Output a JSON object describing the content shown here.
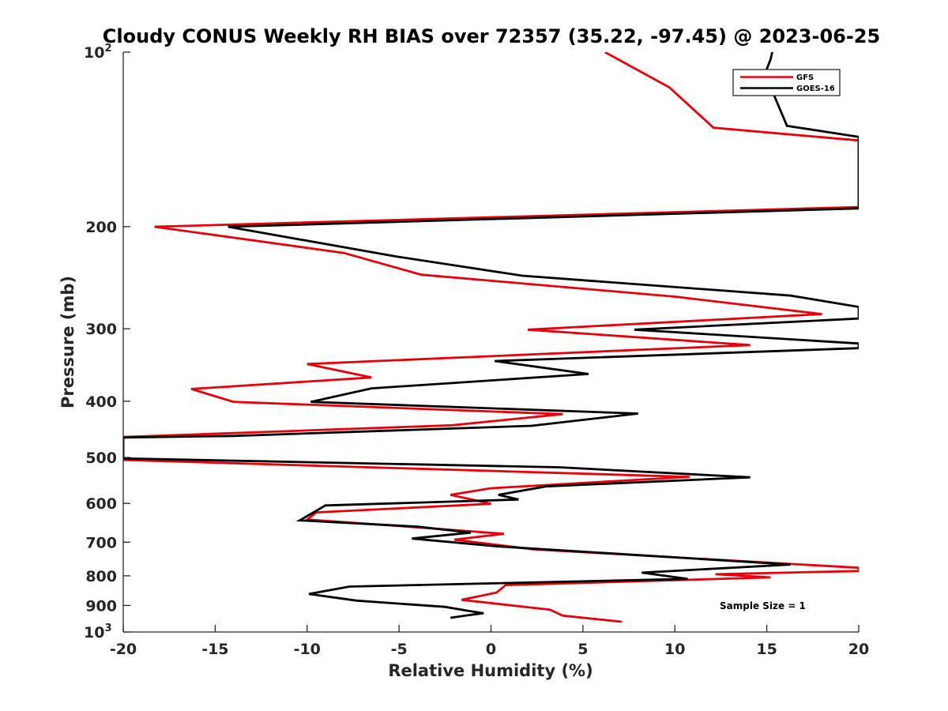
{
  "chart_data": {
    "type": "line",
    "title": "Cloudy CONUS Weekly RH BIAS over 72357 (35.22, -97.45) @ 2023-06-25",
    "xlabel": "Relative Humidity (%)",
    "ylabel": "Pressure (mb)",
    "xlim": [
      -20,
      20
    ],
    "ylim": [
      100,
      1000
    ],
    "y_scale": "log",
    "y_reversed": true,
    "grid": false,
    "legend_position": "top-right",
    "annotation": "Sample Size = 1",
    "x_ticks": [
      -20,
      -15,
      -10,
      -5,
      0,
      5,
      10,
      15,
      20
    ],
    "x_tick_labels": [
      "-20",
      "-15",
      "-10",
      "-5",
      "0",
      "5",
      "10",
      "15",
      "20"
    ],
    "y_ticks": [
      {
        "value": 100,
        "label": "10",
        "exp": "2"
      },
      {
        "value": 200,
        "label": "200",
        "exp": ""
      },
      {
        "value": 300,
        "label": "300",
        "exp": ""
      },
      {
        "value": 400,
        "label": "400",
        "exp": ""
      },
      {
        "value": 500,
        "label": "500",
        "exp": ""
      },
      {
        "value": 600,
        "label": "600",
        "exp": ""
      },
      {
        "value": 700,
        "label": "700",
        "exp": ""
      },
      {
        "value": 800,
        "label": "800",
        "exp": ""
      },
      {
        "value": 900,
        "label": "900",
        "exp": ""
      },
      {
        "value": 1000,
        "label": "10",
        "exp": "3"
      }
    ],
    "series": [
      {
        "name": "GFS",
        "color": "#e8000b",
        "points": [
          [
            6.2,
            100
          ],
          [
            9.7,
            115
          ],
          [
            12.1,
            135
          ],
          [
            20.0,
            142
          ],
          [
            20.0,
            185
          ],
          [
            -18.3,
            200
          ],
          [
            -8.0,
            222
          ],
          [
            -3.8,
            242
          ],
          [
            10.0,
            264
          ],
          [
            18.0,
            283
          ],
          [
            2.0,
            301
          ],
          [
            14.1,
            320
          ],
          [
            -10.0,
            345
          ],
          [
            -6.5,
            364
          ],
          [
            -16.3,
            381
          ],
          [
            -14.0,
            401
          ],
          [
            3.9,
            421
          ],
          [
            -2.1,
            440
          ],
          [
            -20.0,
            461
          ],
          [
            -20.0,
            505
          ],
          [
            10.8,
            540
          ],
          [
            0.0,
            565
          ],
          [
            -2.2,
            580
          ],
          [
            0.0,
            601
          ],
          [
            -9.5,
            622
          ],
          [
            -10.0,
            640
          ],
          [
            -4.0,
            660
          ],
          [
            0.7,
            677
          ],
          [
            -2.0,
            693
          ],
          [
            2.3,
            720
          ],
          [
            20.0,
            775
          ],
          [
            20.0,
            785
          ],
          [
            12.2,
            795
          ],
          [
            15.2,
            805
          ],
          [
            0.8,
            830
          ],
          [
            0.3,
            855
          ],
          [
            -1.6,
            880
          ],
          [
            3.2,
            915
          ],
          [
            3.9,
            937
          ],
          [
            7.1,
            960
          ]
        ]
      },
      {
        "name": "GOES-16",
        "color": "#000000",
        "points": [
          [
            15.3,
            100
          ],
          [
            15.2,
            103
          ],
          [
            14.9,
            109
          ],
          [
            16.1,
            134
          ],
          [
            20.0,
            140
          ],
          [
            20.0,
            186
          ],
          [
            -14.3,
            200
          ],
          [
            -5.2,
            225
          ],
          [
            1.7,
            243
          ],
          [
            16.3,
            263
          ],
          [
            20.0,
            275
          ],
          [
            20.0,
            288
          ],
          [
            7.8,
            301
          ],
          [
            20.0,
            318
          ],
          [
            20.0,
            324
          ],
          [
            0.2,
            341
          ],
          [
            5.3,
            359
          ],
          [
            -6.5,
            380
          ],
          [
            -9.8,
            401
          ],
          [
            8.0,
            420
          ],
          [
            2.2,
            441
          ],
          [
            -14.0,
            459
          ],
          [
            -20.0,
            462
          ],
          [
            -20.0,
            502
          ],
          [
            3.7,
            520
          ],
          [
            14.1,
            541
          ],
          [
            3.0,
            561
          ],
          [
            0.4,
            580
          ],
          [
            1.5,
            591
          ],
          [
            -9.0,
            605
          ],
          [
            -10.4,
            642
          ],
          [
            -4.0,
            658
          ],
          [
            -1.1,
            674
          ],
          [
            -4.3,
            690
          ],
          [
            0.4,
            712
          ],
          [
            16.3,
            765
          ],
          [
            8.2,
            790
          ],
          [
            10.7,
            810
          ],
          [
            -7.7,
            835
          ],
          [
            -9.9,
            860
          ],
          [
            -7.3,
            883
          ],
          [
            -2.5,
            905
          ],
          [
            -1.2,
            920
          ],
          [
            -0.4,
            928
          ],
          [
            -1.2,
            935
          ],
          [
            -2.2,
            945
          ]
        ]
      }
    ]
  }
}
